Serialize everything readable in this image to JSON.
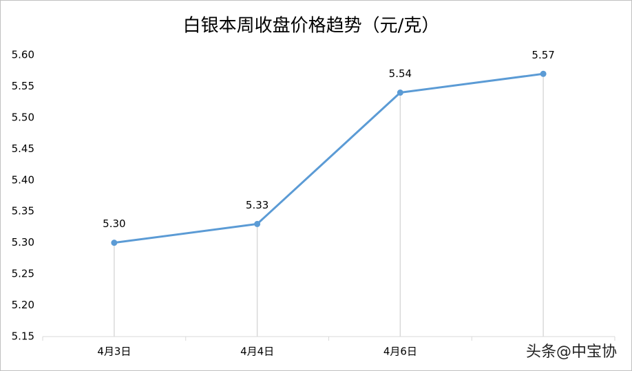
{
  "chart_data": {
    "type": "line",
    "title": "白银本周收盘价格趋势（元/克）",
    "categories": [
      "4月3日",
      "4月4日",
      "4月6日",
      null
    ],
    "series": [
      {
        "name": "收盘价",
        "color": "#5b9bd5",
        "values": [
          5.3,
          5.33,
          5.54,
          5.57
        ],
        "value_labels": [
          "5.30",
          "5.33",
          "5.54",
          "5.57"
        ]
      }
    ],
    "ylim": [
      5.15,
      5.6
    ],
    "yticks": [
      5.15,
      {
        "value": 5.2,
        "label": "5.20"
      },
      5.25,
      {
        "value": 5.3,
        "label": "5.30"
      },
      5.35,
      {
        "value": 5.4,
        "label": "5.40"
      },
      5.45,
      {
        "value": 5.5,
        "label": "5.50"
      },
      5.55,
      {
        "value": 5.6,
        "label": "5.60"
      }
    ],
    "drop_lines": true,
    "annotation": "头条@中宝协"
  }
}
